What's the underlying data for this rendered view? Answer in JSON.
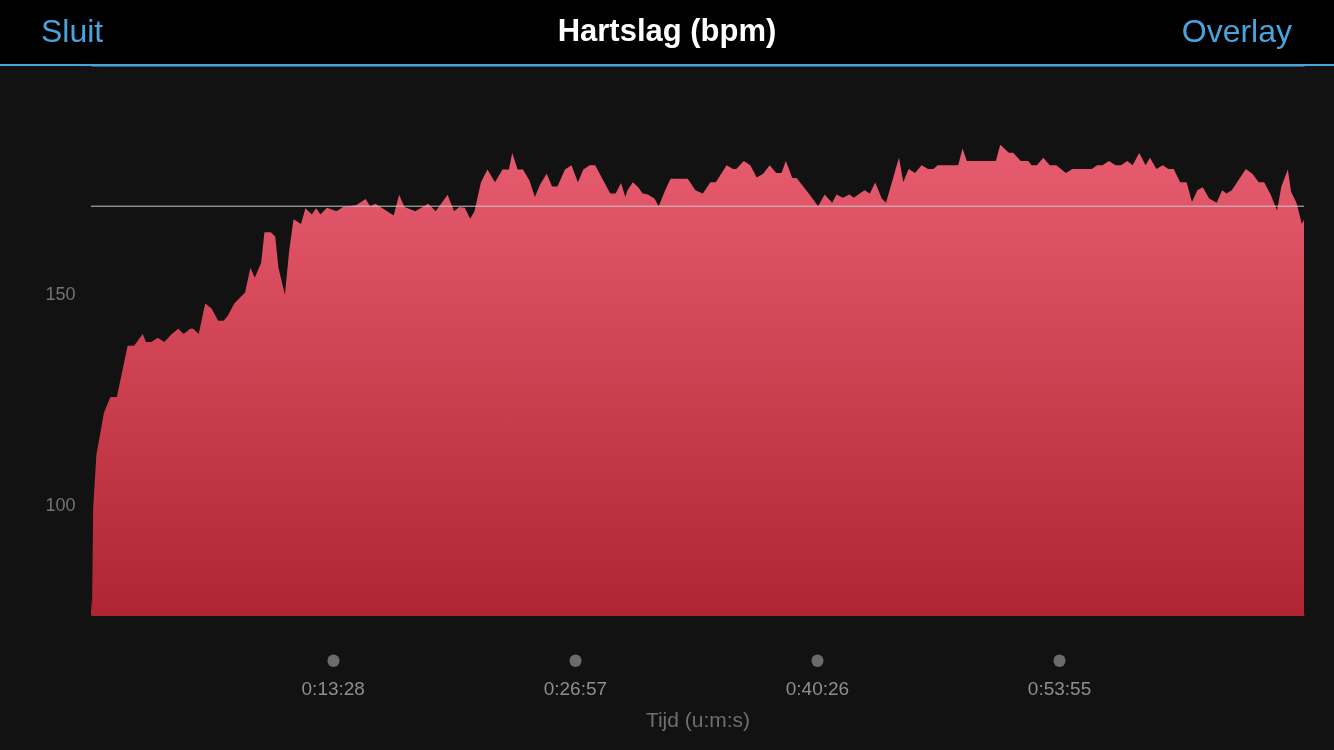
{
  "chart_data": {
    "type": "area",
    "title": "Hartslag (bpm)",
    "xlabel": "Tijd (u:m:s)",
    "annotations": [
      "Sluit",
      "Overlay"
    ],
    "x": [
      0.0,
      0.001,
      0.002,
      0.005,
      0.012,
      0.018,
      0.024,
      0.034,
      0.04,
      0.048,
      0.051,
      0.056,
      0.062,
      0.068,
      0.075,
      0.081,
      0.086,
      0.092,
      0.095,
      0.1,
      0.106,
      0.112,
      0.118,
      0.123,
      0.127,
      0.133,
      0.143,
      0.148,
      0.152,
      0.158,
      0.161,
      0.167,
      0.171,
      0.174,
      0.18,
      0.184,
      0.188,
      0.195,
      0.199,
      0.205,
      0.209,
      0.213,
      0.219,
      0.228,
      0.234,
      0.246,
      0.255,
      0.259,
      0.264,
      0.281,
      0.286,
      0.291,
      0.301,
      0.313,
      0.32,
      0.331,
      0.337,
      0.342,
      0.347,
      0.352,
      0.356,
      0.362,
      0.368,
      0.375,
      0.382,
      0.388,
      0.391,
      0.396,
      0.401,
      0.407,
      0.412,
      0.417,
      0.423,
      0.428,
      0.433,
      0.44,
      0.446,
      0.452,
      0.457,
      0.463,
      0.468,
      0.482,
      0.487,
      0.492,
      0.496,
      0.498,
      0.503,
      0.508,
      0.512,
      0.517,
      0.523,
      0.527,
      0.533,
      0.538,
      0.554,
      0.561,
      0.568,
      0.575,
      0.58,
      0.59,
      0.596,
      0.599,
      0.606,
      0.612,
      0.618,
      0.624,
      0.63,
      0.636,
      0.641,
      0.645,
      0.651,
      0.655,
      0.667,
      0.675,
      0.681,
      0.688,
      0.692,
      0.698,
      0.704,
      0.708,
      0.718,
      0.723,
      0.728,
      0.734,
      0.738,
      0.75,
      0.754,
      0.759,
      0.765,
      0.771,
      0.777,
      0.782,
      0.786,
      0.805,
      0.809,
      0.813,
      0.84,
      0.844,
      0.852,
      0.856,
      0.863,
      0.87,
      0.873,
      0.878,
      0.884,
      0.89,
      0.896,
      0.905,
      0.911,
      0.929,
      0.934,
      0.939,
      0.945,
      0.951,
      0.956,
      0.962,
      0.967,
      0.973,
      0.979,
      0.983,
      0.989,
      0.995,
      1.0,
      1.005,
      1.011,
      1.017,
      1.022,
      1.027,
      1.032,
      1.038,
      1.045,
      1.05,
      1.054,
      1.059,
      1.072,
      1.078,
      1.084,
      1.089,
      1.095,
      1.101,
      1.105,
      1.111,
      1.114,
      1.119,
      1.124,
      1.126
    ],
    "series": [
      {
        "color": "#e85c70",
        "values": [
          78,
          75,
          99.3,
          112,
          122,
          125.7,
          125.7,
          137.9,
          137.9,
          140.7,
          138.8,
          138.8,
          139.8,
          138.8,
          140.7,
          141.9,
          140.7,
          141.9,
          141.9,
          140.7,
          147.9,
          146.7,
          143.8,
          143.8,
          145,
          147.9,
          150.5,
          156.4,
          154,
          157.6,
          164.8,
          164.8,
          163.8,
          156.4,
          150,
          160.5,
          167.9,
          166.8,
          170.5,
          169,
          170.5,
          169,
          170.6,
          169.8,
          170.8,
          171.2,
          172.7,
          171,
          171.6,
          168.8,
          173.7,
          170.8,
          169.8,
          171.6,
          169.8,
          173.7,
          169.8,
          170.8,
          170.6,
          168,
          169.8,
          176.7,
          179.7,
          176.7,
          179.7,
          179.7,
          183.6,
          179.7,
          179.7,
          177.1,
          173.2,
          176.2,
          178.7,
          175.7,
          175.7,
          179.7,
          180.7,
          176.7,
          179.7,
          180.7,
          180.7,
          174,
          174,
          176.5,
          173.2,
          174.8,
          176.7,
          175.5,
          174,
          173.8,
          172.8,
          171,
          174.8,
          177.5,
          177.5,
          174.8,
          174,
          176.7,
          176.7,
          180.7,
          179.8,
          179.8,
          181.7,
          180.7,
          177.8,
          178.7,
          180.7,
          178.9,
          178.9,
          181.7,
          177.7,
          177.7,
          173.8,
          171,
          173.8,
          171.8,
          173.8,
          173,
          173.8,
          173,
          174.8,
          174,
          176.6,
          172.8,
          171.8,
          182.5,
          176.7,
          179.8,
          178.9,
          180.7,
          179.8,
          179.8,
          180.7,
          180.7,
          184.7,
          181.7,
          181.7,
          185.6,
          183.7,
          183.7,
          181.7,
          181.7,
          180.7,
          180.7,
          182.5,
          180.7,
          180.7,
          178.9,
          179.8,
          179.8,
          180.7,
          180.7,
          181.7,
          180.7,
          180.7,
          181.7,
          180.7,
          183.6,
          180.7,
          182.5,
          179.8,
          180.7,
          179.8,
          179.8,
          176.7,
          176.7,
          172,
          174.8,
          175.5,
          172.8,
          171.8,
          174.8,
          174,
          174.8,
          179.8,
          178.7,
          176.7,
          176.7,
          173.8,
          170,
          175.7,
          179.7,
          174.4,
          171.8,
          166.8,
          167.8
        ]
      }
    ],
    "xlim": [
      0,
      1.126
    ],
    "xticks": [
      {
        "value": 0.2244,
        "label": "0:13:28"
      },
      {
        "value": 0.4492,
        "label": "0:26:57"
      },
      {
        "value": 0.6739,
        "label": "0:40:26"
      },
      {
        "value": 0.8986,
        "label": "0:53:55"
      }
    ],
    "ylim": [
      74,
      204.5
    ],
    "yticks": [
      100,
      150
    ],
    "ref_lines": [
      {
        "axis": "y",
        "value": 171,
        "color": "#c8c8c8"
      }
    ]
  }
}
